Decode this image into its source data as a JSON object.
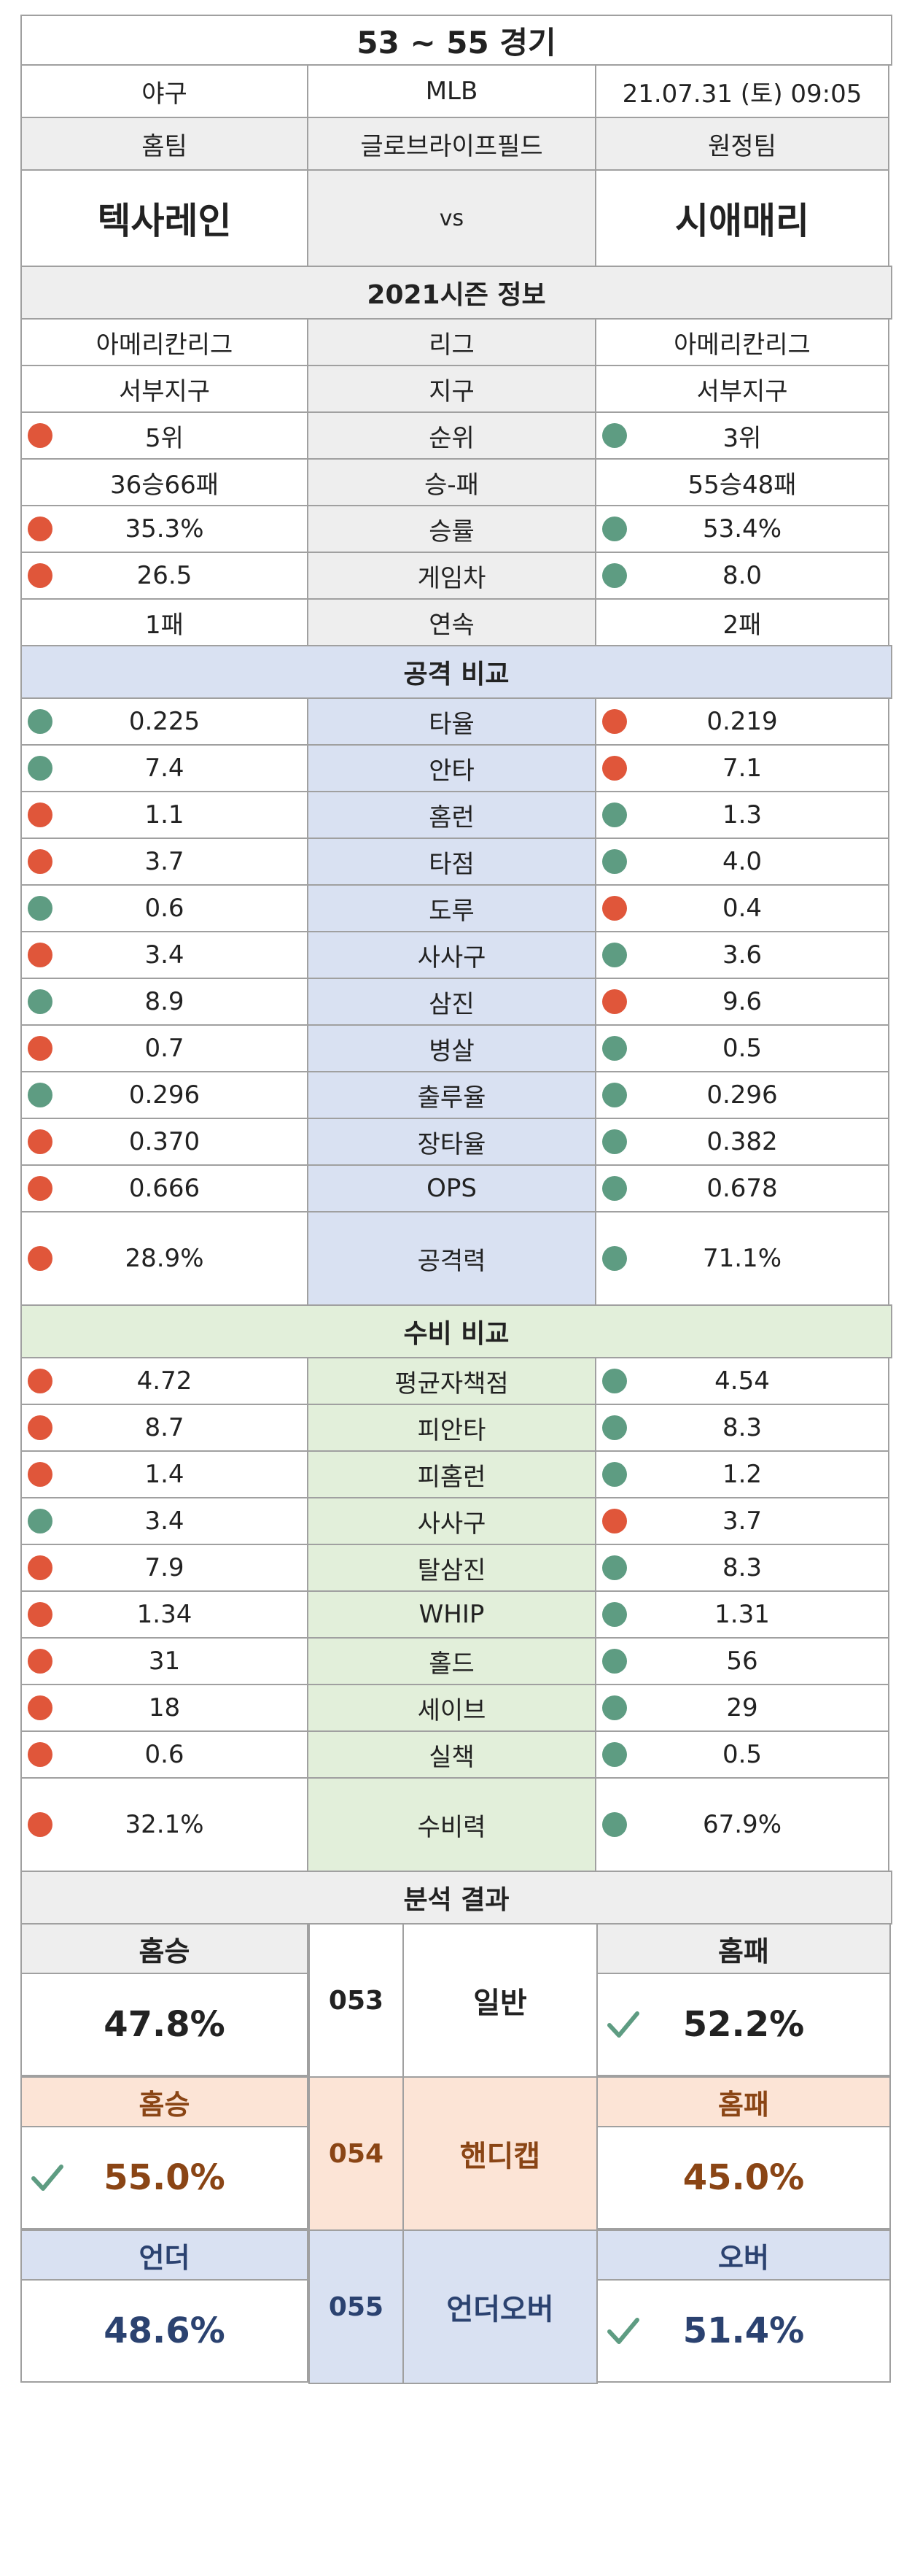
{
  "header": {
    "title": "53 ~ 55 경기",
    "sport": "야구",
    "league": "MLB",
    "datetime": "21.07.31 (토) 09:05",
    "home_label": "홈팀",
    "stadium": "글로브라이프필드",
    "away_label": "원정팀",
    "home_team": "텍사레인",
    "vs": "vs",
    "away_team": "시애매리"
  },
  "season": {
    "title": "2021시즌 정보",
    "rows": [
      {
        "home": "아메리칸리그",
        "label": "리그",
        "away": "아메리칸리그"
      },
      {
        "home": "서부지구",
        "label": "지구",
        "away": "서부지구"
      },
      {
        "home": "5위",
        "label": "순위",
        "away": "3위",
        "home_dot": "red",
        "away_dot": "green"
      },
      {
        "home": "36승66패",
        "label": "승-패",
        "away": "55승48패"
      },
      {
        "home": "35.3%",
        "label": "승률",
        "away": "53.4%",
        "home_dot": "red",
        "away_dot": "green"
      },
      {
        "home": "26.5",
        "label": "게임차",
        "away": "8.0",
        "home_dot": "red",
        "away_dot": "green"
      },
      {
        "home": "1패",
        "label": "연속",
        "away": "2패"
      }
    ]
  },
  "attack": {
    "title": "공격 비교",
    "rows": [
      {
        "home": "0.225",
        "label": "타율",
        "away": "0.219",
        "home_dot": "green",
        "away_dot": "red"
      },
      {
        "home": "7.4",
        "label": "안타",
        "away": "7.1",
        "home_dot": "green",
        "away_dot": "red"
      },
      {
        "home": "1.1",
        "label": "홈런",
        "away": "1.3",
        "home_dot": "red",
        "away_dot": "green"
      },
      {
        "home": "3.7",
        "label": "타점",
        "away": "4.0",
        "home_dot": "red",
        "away_dot": "green"
      },
      {
        "home": "0.6",
        "label": "도루",
        "away": "0.4",
        "home_dot": "green",
        "away_dot": "red"
      },
      {
        "home": "3.4",
        "label": "사사구",
        "away": "3.6",
        "home_dot": "red",
        "away_dot": "green"
      },
      {
        "home": "8.9",
        "label": "삼진",
        "away": "9.6",
        "home_dot": "green",
        "away_dot": "red"
      },
      {
        "home": "0.7",
        "label": "병살",
        "away": "0.5",
        "home_dot": "red",
        "away_dot": "green"
      },
      {
        "home": "0.296",
        "label": "출루율",
        "away": "0.296",
        "home_dot": "green",
        "away_dot": "green"
      },
      {
        "home": "0.370",
        "label": "장타율",
        "away": "0.382",
        "home_dot": "red",
        "away_dot": "green"
      },
      {
        "home": "0.666",
        "label": "OPS",
        "away": "0.678",
        "home_dot": "red",
        "away_dot": "green"
      }
    ],
    "total": {
      "home": "28.9%",
      "label": "공격력",
      "away": "71.1%",
      "home_dot": "red",
      "away_dot": "green"
    }
  },
  "defense": {
    "title": "수비 비교",
    "rows": [
      {
        "home": "4.72",
        "label": "평균자책점",
        "away": "4.54",
        "home_dot": "red",
        "away_dot": "green"
      },
      {
        "home": "8.7",
        "label": "피안타",
        "away": "8.3",
        "home_dot": "red",
        "away_dot": "green"
      },
      {
        "home": "1.4",
        "label": "피홈런",
        "away": "1.2",
        "home_dot": "red",
        "away_dot": "green"
      },
      {
        "home": "3.4",
        "label": "사사구",
        "away": "3.7",
        "home_dot": "green",
        "away_dot": "red"
      },
      {
        "home": "7.9",
        "label": "탈삼진",
        "away": "8.3",
        "home_dot": "red",
        "away_dot": "green"
      },
      {
        "home": "1.34",
        "label": "WHIP",
        "away": "1.31",
        "home_dot": "red",
        "away_dot": "green"
      },
      {
        "home": "31",
        "label": "홀드",
        "away": "56",
        "home_dot": "red",
        "away_dot": "green"
      },
      {
        "home": "18",
        "label": "세이브",
        "away": "29",
        "home_dot": "red",
        "away_dot": "green"
      },
      {
        "home": "0.6",
        "label": "실책",
        "away": "0.5",
        "home_dot": "red",
        "away_dot": "green"
      }
    ],
    "total": {
      "home": "32.1%",
      "label": "수비력",
      "away": "67.9%",
      "home_dot": "red",
      "away_dot": "green"
    }
  },
  "analysis": {
    "title": "분석 결과",
    "general": {
      "left_label": "홈승",
      "left_value": "47.8%",
      "game_no": "053",
      "type": "일반",
      "right_label": "홈패",
      "right_value": "52.2%",
      "check": "right"
    },
    "handicap": {
      "left_label": "홈승",
      "left_value": "55.0%",
      "game_no": "054",
      "type": "핸디캡",
      "right_label": "홈패",
      "right_value": "45.0%",
      "check": "left"
    },
    "underover": {
      "left_label": "언더",
      "left_value": "48.6%",
      "game_no": "055",
      "type": "언더오버",
      "right_label": "오버",
      "right_value": "51.4%",
      "check": "right"
    }
  },
  "colors": {
    "red_dot": "#e0563a",
    "green_dot": "#5e9c82",
    "attack_bg": "#d9e1f2",
    "defense_bg": "#e2efda",
    "handicap_bg": "#fce4d6"
  }
}
